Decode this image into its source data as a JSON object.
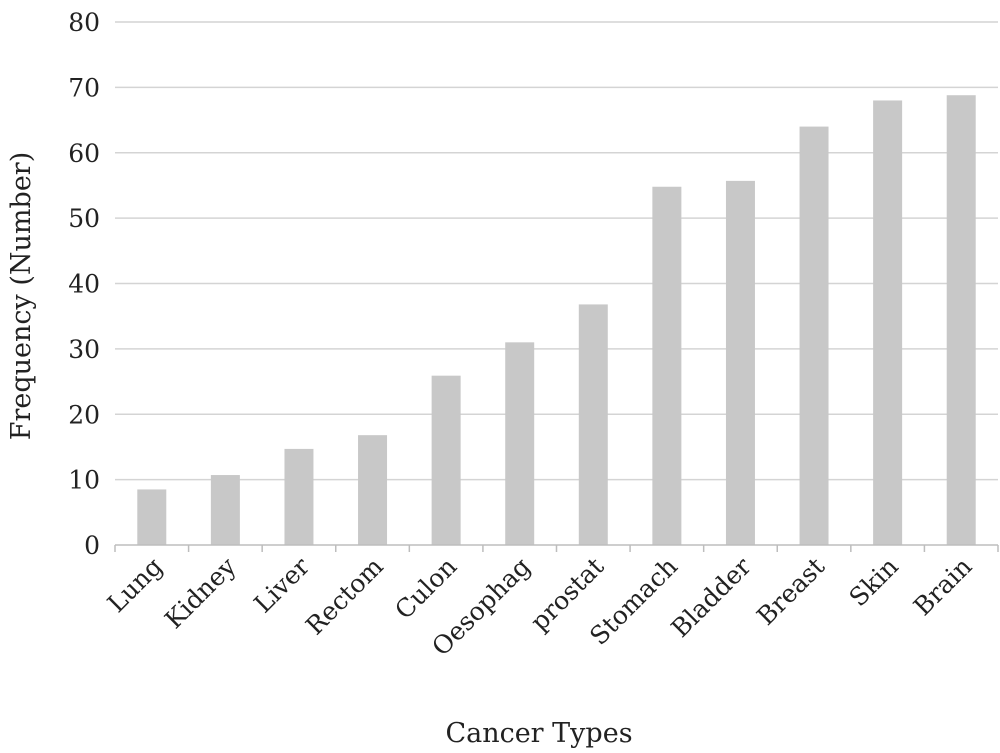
{
  "chart_data": {
    "type": "bar",
    "categories": [
      "Lung",
      "Kidney",
      "Liver",
      "Rectom",
      "Culon",
      "Oesophag",
      "prostat",
      "Stomach",
      "Bladder",
      "Breast",
      "Skin",
      "Brain"
    ],
    "values": [
      8.5,
      10.7,
      14.7,
      16.8,
      25.9,
      31,
      36.8,
      54.8,
      55.7,
      64,
      68,
      68.8
    ],
    "xlabel": "Cancer Types",
    "ylabel": "Frequency (Number)",
    "ylim": [
      0,
      80
    ],
    "yticks": [
      "0",
      "10",
      "20",
      "30",
      "40",
      "50",
      "60",
      "70",
      "80"
    ],
    "grid": true,
    "colors": {
      "bar": "#c8c8c8",
      "grid": "#d4d4d4",
      "axis": "#bdbdbd"
    }
  }
}
